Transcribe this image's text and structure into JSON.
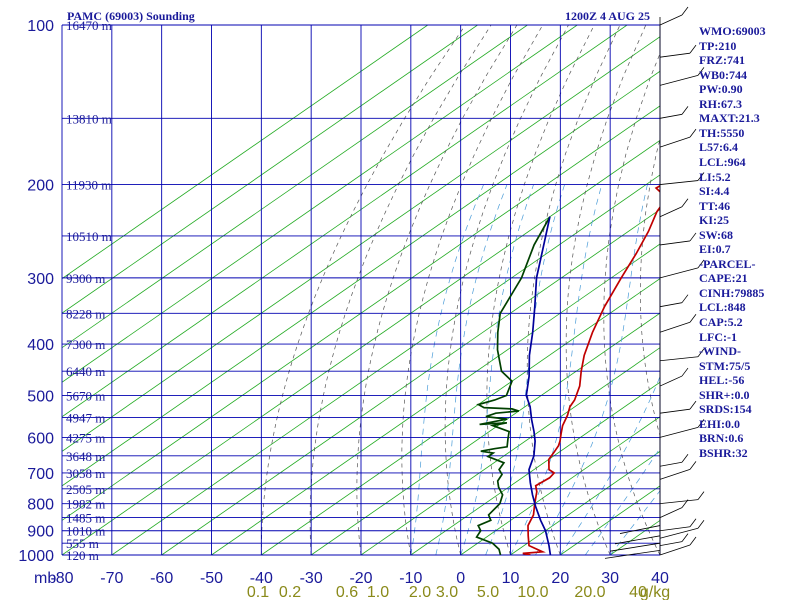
{
  "header": {
    "station_title": "PAMC (69003) Sounding",
    "datetime": "1200Z  4 AUG 25"
  },
  "chart_data": {
    "type": "line",
    "title": "PAMC (69003) Sounding",
    "subtitle": "1200Z  4 AUG 25",
    "xlabel": "",
    "ylabel": "mb",
    "xlim": [
      -80,
      40
    ],
    "ylim": [
      1000,
      100
    ],
    "y_scale": "log",
    "x_ticks": [
      -80,
      -70,
      -60,
      -50,
      -40,
      -30,
      -20,
      -10,
      0,
      10,
      20,
      30,
      40
    ],
    "y_ticks": [
      100,
      200,
      300,
      400,
      500,
      600,
      700,
      800,
      900,
      1000
    ],
    "mixing_ratio_labels": [
      "0.1",
      "0.2",
      "0.6",
      "1.0",
      "2.0",
      "3.0",
      "5.0",
      "10.0",
      "20.0",
      "40",
      "g/kg"
    ],
    "height_labels": [
      {
        "p": 100,
        "label": "16470 m"
      },
      {
        "p": 150,
        "label": "13810 m"
      },
      {
        "p": 200,
        "label": "11930 m"
      },
      {
        "p": 250,
        "label": "10510 m"
      },
      {
        "p": 300,
        "label": "9300 m"
      },
      {
        "p": 350,
        "label": "8228 m"
      },
      {
        "p": 400,
        "label": "7300 m"
      },
      {
        "p": 450,
        "label": "6440 m"
      },
      {
        "p": 500,
        "label": "5670 m"
      },
      {
        "p": 550,
        "label": "4947 m"
      },
      {
        "p": 600,
        "label": "4275 m"
      },
      {
        "p": 650,
        "label": "3648 m"
      },
      {
        "p": 700,
        "label": "3058 m"
      },
      {
        "p": 750,
        "label": "2505 m"
      },
      {
        "p": 800,
        "label": "1982 m"
      },
      {
        "p": 850,
        "label": "1485 m"
      },
      {
        "p": 900,
        "label": "1010 m"
      },
      {
        "p": 950,
        "label": "555 m"
      },
      {
        "p": 1000,
        "label": "120 m"
      }
    ],
    "series": [
      {
        "key": "temperature",
        "color": "#c00000",
        "points": [
          [
            14,
            1000
          ],
          [
            12,
            993
          ],
          [
            15.5,
            986
          ],
          [
            11,
            960
          ],
          [
            8,
            920
          ],
          [
            5,
            880
          ],
          [
            3,
            840
          ],
          [
            0,
            800
          ],
          [
            -3,
            760
          ],
          [
            -5,
            740
          ],
          [
            -4.5,
            715
          ],
          [
            -5,
            700
          ],
          [
            -7,
            690
          ],
          [
            -10,
            660
          ],
          [
            -11,
            640
          ],
          [
            -12,
            622
          ],
          [
            -13,
            610
          ],
          [
            -15,
            590
          ],
          [
            -17,
            570
          ],
          [
            -19,
            545
          ],
          [
            -21,
            525
          ],
          [
            -22,
            510
          ],
          [
            -25,
            480
          ],
          [
            -29,
            450
          ],
          [
            -33,
            420
          ],
          [
            -38,
            380
          ],
          [
            -43,
            340
          ],
          [
            -48,
            300
          ],
          [
            -52,
            270
          ],
          [
            -56,
            245
          ],
          [
            -60,
            225
          ],
          [
            -62,
            212
          ],
          [
            -67,
            203
          ],
          [
            -66,
            192
          ],
          [
            -60,
            183
          ],
          [
            -58,
            170
          ],
          [
            -56,
            160
          ],
          [
            -54,
            150
          ],
          [
            -52,
            135
          ],
          [
            -51,
            120
          ],
          [
            -51,
            110
          ],
          [
            -50,
            100
          ]
        ]
      },
      {
        "key": "dewpoint",
        "color": "#004000",
        "points": [
          [
            8,
            1000
          ],
          [
            6,
            975
          ],
          [
            3,
            950
          ],
          [
            -2,
            925
          ],
          [
            -3,
            900
          ],
          [
            -5,
            880
          ],
          [
            -4,
            860
          ],
          [
            -6,
            840
          ],
          [
            -7,
            800
          ],
          [
            -9,
            770
          ],
          [
            -12,
            745
          ],
          [
            -14,
            725
          ],
          [
            -15,
            705
          ],
          [
            -17,
            690
          ],
          [
            -18,
            670
          ],
          [
            -23,
            652
          ],
          [
            -23,
            642
          ],
          [
            -26,
            637
          ],
          [
            -24,
            630
          ],
          [
            -22,
            625
          ],
          [
            -24,
            605
          ],
          [
            -26,
            585
          ],
          [
            -31,
            570
          ],
          [
            -29,
            563
          ],
          [
            -34,
            567
          ],
          [
            -30,
            554
          ],
          [
            -35,
            548
          ],
          [
            -34,
            540
          ],
          [
            -30,
            535
          ],
          [
            -32,
            530
          ],
          [
            -38,
            527
          ],
          [
            -40,
            520
          ],
          [
            -38,
            510
          ],
          [
            -37,
            500
          ],
          [
            -40,
            470
          ],
          [
            -45,
            450
          ],
          [
            -52,
            410
          ],
          [
            -57,
            380
          ],
          [
            -62,
            350
          ],
          [
            -68,
            300
          ],
          [
            -75,
            260
          ],
          [
            -80,
            230
          ]
        ]
      },
      {
        "key": "virtual_temperature",
        "color": "#00009a",
        "points": [
          [
            18,
            1000
          ],
          [
            15,
            960
          ],
          [
            10,
            900
          ],
          [
            6,
            860
          ],
          [
            1,
            810
          ],
          [
            -3,
            770
          ],
          [
            -7,
            730
          ],
          [
            -11,
            690
          ],
          [
            -14,
            650
          ],
          [
            -18,
            610
          ],
          [
            -21,
            585
          ],
          [
            -25,
            555
          ],
          [
            -29,
            525
          ],
          [
            -33,
            500
          ],
          [
            -38,
            460
          ],
          [
            -44,
            420
          ],
          [
            -50,
            380
          ],
          [
            -57,
            340
          ],
          [
            -65,
            300
          ],
          [
            -72,
            265
          ],
          [
            -80,
            230
          ]
        ]
      }
    ]
  },
  "indices": [
    "WMO:69003",
    "TP:210",
    "FRZ:741",
    "WB0:744",
    "PW:0.90",
    "RH:67.3",
    "MAXT:21.3",
    "TH:5550",
    "L57:6.4",
    "LCL:964",
    "LI:5.2",
    "SI:4.4",
    "TT:46",
    "KI:25",
    "SW:68",
    "EI:0.7",
    "-PARCEL-",
    "CAPE:21",
    "CINH:79885",
    "LCL:848",
    "CAP:5.2",
    "LFC:-1",
    "-WIND-",
    "STM:75/5",
    "HEL:-56",
    "SHR+:0.0",
    "SRDS:154",
    "EHI:0.0",
    "BRN:0.6",
    "BSHR:32"
  ]
}
